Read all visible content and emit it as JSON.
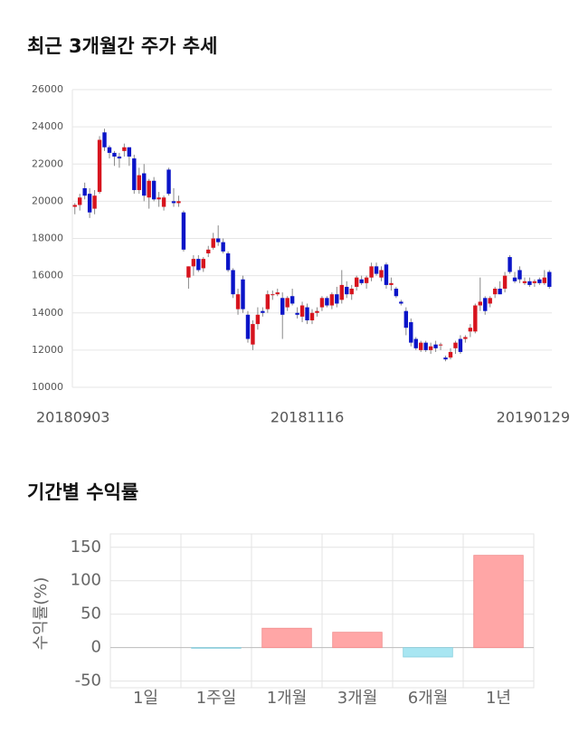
{
  "chart_data": [
    {
      "type": "candlestick",
      "title": "최근 3개월간 주가 추세",
      "categories": [
        "20180903",
        null,
        null,
        null,
        null,
        null,
        null,
        null,
        null,
        null,
        null,
        null,
        null,
        null,
        null,
        null,
        null,
        null,
        null,
        null,
        null,
        null,
        null,
        null,
        null,
        null,
        null,
        null,
        null,
        null,
        null,
        null,
        null,
        null,
        null,
        null,
        null,
        null,
        null,
        null,
        null,
        null,
        null,
        null,
        null,
        null,
        null,
        "20181116",
        null,
        null,
        null,
        null,
        null,
        null,
        null,
        null,
        null,
        null,
        null,
        null,
        null,
        null,
        null,
        null,
        null,
        null,
        null,
        null,
        null,
        null,
        null,
        null,
        null,
        null,
        null,
        null,
        null,
        null,
        null,
        null,
        null,
        null,
        null,
        null,
        null,
        null,
        null,
        null,
        null,
        null,
        null,
        null,
        null,
        null,
        null,
        null,
        "20190129"
      ],
      "open": [
        19700,
        19800,
        20700,
        20400,
        19600,
        20500,
        23700,
        22900,
        22600,
        22400,
        22700,
        22900,
        22300,
        20600,
        21500,
        20200,
        21100,
        20100,
        19700,
        21700,
        20000,
        19900,
        19400,
        15900,
        16500,
        16900,
        16400,
        17200,
        17500,
        18000,
        17800,
        17200,
        16300,
        14200,
        15800,
        13900,
        12300,
        13400,
        14100,
        14200,
        15000,
        15000,
        14800,
        14300,
        14900,
        14000,
        13800,
        14300,
        13600,
        14000,
        14300,
        14800,
        14400,
        15000,
        14700,
        15400,
        15000,
        15400,
        15800,
        15600,
        15900,
        16500,
        15900,
        16600,
        15500,
        15300,
        14600,
        14100,
        13500,
        12600,
        12000,
        12400,
        12000,
        12300,
        12300,
        11600,
        11600,
        12100,
        12600,
        12600,
        13000,
        13000,
        14400,
        14800,
        14500,
        15000,
        15300,
        15300,
        17000,
        15900,
        16300,
        15600,
        15700,
        15600,
        15800,
        15600,
        16200
      ],
      "high": [
        19900,
        20400,
        21000,
        20700,
        20600,
        23500,
        23900,
        23000,
        22700,
        22600,
        23100,
        22900,
        22500,
        21800,
        22000,
        21200,
        21300,
        20500,
        20300,
        21800,
        20700,
        20300,
        19500,
        16500,
        17100,
        17100,
        17000,
        17600,
        18300,
        18700,
        18000,
        17300,
        16400,
        15300,
        16000,
        14100,
        13600,
        14300,
        14300,
        15200,
        15200,
        15300,
        15100,
        14900,
        15300,
        14300,
        14600,
        14500,
        14200,
        14300,
        14900,
        14900,
        15100,
        15400,
        16300,
        15700,
        15500,
        16000,
        16000,
        16000,
        16700,
        16700,
        16500,
        16700,
        15900,
        15400,
        14700,
        14300,
        13700,
        12700,
        12500,
        12500,
        12400,
        12500,
        12400,
        11700,
        12100,
        12500,
        12800,
        12800,
        13400,
        14500,
        15900,
        14900,
        14900,
        15400,
        15700,
        16200,
        17100,
        16200,
        16500,
        15900,
        15900,
        15800,
        15900,
        16300,
        16300
      ],
      "low": [
        19300,
        19500,
        20100,
        19100,
        19300,
        20400,
        22700,
        22300,
        21900,
        21800,
        22400,
        21900,
        20400,
        20400,
        20000,
        19600,
        20000,
        19700,
        19500,
        20300,
        19700,
        19700,
        17300,
        15300,
        16000,
        16200,
        16200,
        17000,
        17400,
        17600,
        17200,
        16200,
        14800,
        13900,
        14000,
        12400,
        12000,
        13100,
        13800,
        14000,
        14700,
        14900,
        12600,
        14100,
        14400,
        13700,
        13500,
        13400,
        13400,
        13800,
        14100,
        14300,
        14200,
        14300,
        14500,
        14800,
        14700,
        15200,
        15500,
        15300,
        15700,
        16000,
        15700,
        15300,
        15200,
        14800,
        14400,
        12800,
        12200,
        12000,
        11900,
        11900,
        11800,
        11900,
        12000,
        11400,
        11500,
        11800,
        11800,
        12400,
        12700,
        12900,
        14100,
        13900,
        14300,
        14800,
        15000,
        15100,
        16100,
        15600,
        15600,
        15500,
        15400,
        15400,
        15500,
        15500,
        15300
      ],
      "close": [
        19800,
        20200,
        20300,
        19400,
        20300,
        23300,
        22900,
        22600,
        22400,
        22300,
        22900,
        22400,
        20600,
        21400,
        20300,
        21100,
        20100,
        20200,
        20200,
        20400,
        19900,
        20000,
        17400,
        16500,
        16900,
        16300,
        16900,
        17400,
        18000,
        17800,
        17300,
        16300,
        15000,
        15000,
        14200,
        12600,
        13400,
        13900,
        14000,
        15000,
        15000,
        15100,
        13900,
        14800,
        14500,
        13900,
        14400,
        13600,
        14000,
        14100,
        14800,
        14400,
        15000,
        14500,
        15500,
        15000,
        15300,
        15900,
        15600,
        15900,
        16500,
        16100,
        16300,
        15500,
        15600,
        14900,
        14500,
        13200,
        12400,
        12100,
        12400,
        12000,
        12200,
        12100,
        12300,
        11500,
        11900,
        12400,
        11900,
        12700,
        13200,
        14400,
        14600,
        14100,
        14800,
        15300,
        15000,
        16000,
        16200,
        15700,
        15800,
        15700,
        15500,
        15700,
        15600,
        15900,
        15400
      ],
      "up_color": "#d7141e",
      "down_color": "#0a14c8",
      "ylim": [
        10000,
        26000
      ],
      "yticks": [
        10000,
        12000,
        14000,
        16000,
        18000,
        20000,
        22000,
        24000,
        26000
      ],
      "grid": true
    },
    {
      "type": "bar",
      "title": "기간별 수익률",
      "y_label": "수익률(%)",
      "categories": [
        "1일",
        "1주일",
        "1개월",
        "3개월",
        "6개월",
        "1년"
      ],
      "values": [
        0,
        -1,
        29,
        23,
        -14,
        138
      ],
      "positive_color": "#ffa6a6",
      "negative_color": "#a8e6f2",
      "ylim": [
        -60,
        170
      ],
      "yticks": [
        -50,
        0,
        50,
        100,
        150
      ],
      "grid": true
    }
  ]
}
